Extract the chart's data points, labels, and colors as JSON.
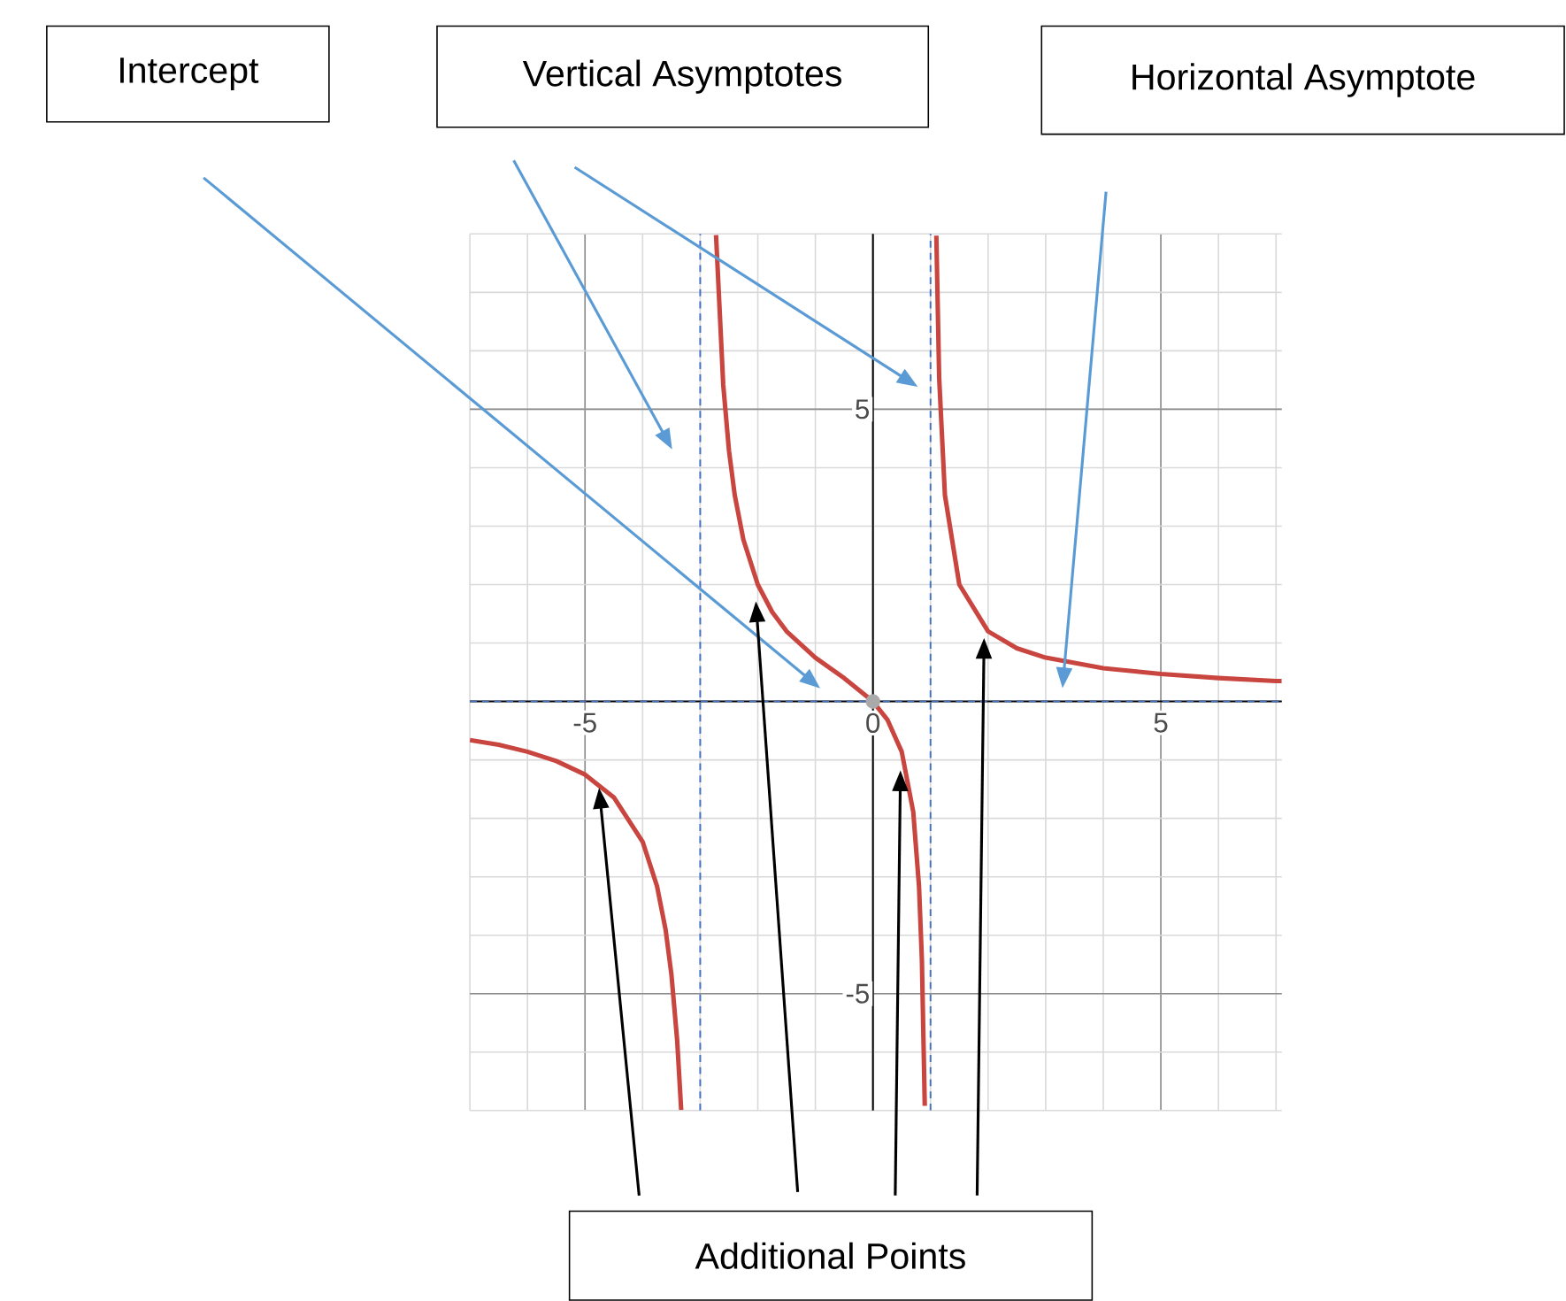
{
  "chart_data": {
    "type": "line",
    "xlim": [
      -7,
      7.1
    ],
    "ylim": [
      -7,
      8
    ],
    "xticks": [
      -5,
      0,
      5
    ],
    "yticks": [
      -5,
      5
    ],
    "grid": true,
    "annotations": [
      "Intercept",
      "Vertical Asymptotes",
      "Horizontal Asymptote",
      "Additional Points"
    ],
    "ref_lines": [
      {
        "axis": "x",
        "value": -3,
        "color": "#4472c4",
        "line_style": "dashed"
      },
      {
        "axis": "x",
        "value": 1,
        "color": "#4472c4",
        "line_style": "dashed"
      },
      {
        "axis": "y",
        "value": 0,
        "color": "#4472c4",
        "line_style": "dashed"
      }
    ],
    "series": [
      {
        "type": "line",
        "color": "#c9453f",
        "marker": "none",
        "x": [
          -7,
          -6.5,
          -6,
          -5.5,
          -5,
          -4.5,
          -4,
          -3.75,
          -3.6,
          -3.5,
          -3.4,
          -3.33,
          null,
          -2.725,
          -2.6,
          -2.5,
          -2.4,
          -2.25,
          -2,
          -1.75,
          -1.5,
          -1,
          -0.5,
          0,
          0.25,
          0.5,
          0.7,
          0.8,
          0.85,
          0.9,
          null,
          1.101,
          1.15,
          1.25,
          1.5,
          2,
          2.5,
          3,
          4,
          5,
          6,
          7,
          7.1
        ],
        "values": [
          -0.66,
          -0.74,
          -0.86,
          -1.02,
          -1.25,
          -1.64,
          -2.4,
          -3.16,
          -3.91,
          -4.67,
          -5.8,
          -6.99,
          null,
          7.98,
          5.42,
          4.29,
          3.53,
          2.77,
          2,
          1.53,
          1.2,
          0.75,
          0.4,
          0,
          -0.31,
          -0.86,
          -1.89,
          -3.16,
          -4.42,
          -6.92,
          null,
          7.97,
          5.54,
          3.53,
          2,
          1.2,
          0.91,
          0.75,
          0.57,
          0.47,
          0.4,
          0.35,
          0.35
        ]
      },
      {
        "type": "scatter",
        "color": "#aaaaaa",
        "marker": "circle",
        "x": [
          0
        ],
        "values": [
          0
        ]
      }
    ]
  }
}
